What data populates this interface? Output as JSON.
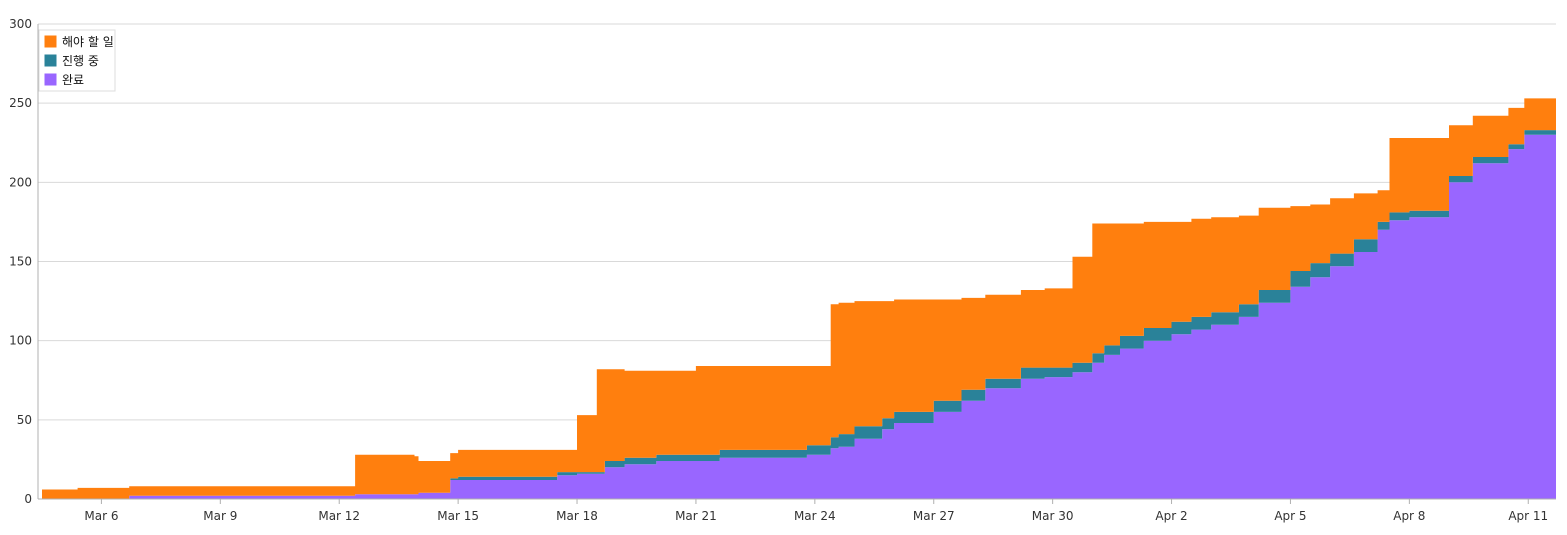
{
  "chart_data": {
    "type": "area",
    "stacked": true,
    "title": "",
    "xlabel": "",
    "ylabel": "",
    "ylim": [
      0,
      300
    ],
    "yticks": [
      0,
      50,
      100,
      150,
      200,
      250,
      300
    ],
    "xlim": [
      -1.6,
      36.7
    ],
    "xticks": [
      {
        "pos": 0,
        "label": "Mar 6"
      },
      {
        "pos": 3,
        "label": "Mar 9"
      },
      {
        "pos": 6,
        "label": "Mar 12"
      },
      {
        "pos": 9,
        "label": "Mar 15"
      },
      {
        "pos": 12,
        "label": "Mar 18"
      },
      {
        "pos": 15,
        "label": "Mar 21"
      },
      {
        "pos": 18,
        "label": "Mar 24"
      },
      {
        "pos": 21,
        "label": "Mar 27"
      },
      {
        "pos": 24,
        "label": "Mar 30"
      },
      {
        "pos": 27,
        "label": "Apr 2"
      },
      {
        "pos": 30,
        "label": "Apr 5"
      },
      {
        "pos": 33,
        "label": "Apr 8"
      },
      {
        "pos": 36,
        "label": "Apr 11"
      }
    ],
    "grid": "horizontal",
    "legend": "top-left",
    "x": [
      -1.5,
      -0.6,
      0.7,
      6.3,
      6.4,
      7.9,
      8.0,
      8.8,
      9.0,
      11.5,
      12.0,
      12.5,
      12.7,
      13.2,
      14.0,
      15.0,
      15.6,
      17.8,
      18.4,
      18.6,
      19.0,
      19.7,
      20.0,
      21.0,
      21.7,
      22.3,
      23.2,
      23.8,
      24.5,
      25.0,
      25.3,
      25.7,
      26.3,
      27.0,
      27.5,
      28.0,
      28.7,
      29.2,
      30.0,
      30.5,
      31.0,
      31.6,
      32.2,
      32.5,
      33.0,
      34.0,
      34.6,
      35.5,
      35.9,
      36.7
    ],
    "series": [
      {
        "name": "완료",
        "color": "#9966ff",
        "values": [
          0,
          0,
          2,
          2,
          3,
          3,
          4,
          12,
          12,
          15,
          16,
          16,
          20,
          22,
          24,
          24,
          26,
          28,
          32,
          33,
          38,
          44,
          48,
          55,
          62,
          70,
          76,
          77,
          80,
          86,
          91,
          95,
          100,
          104,
          107,
          110,
          115,
          124,
          134,
          140,
          147,
          156,
          170,
          176,
          178,
          200,
          212,
          221,
          230,
          240
        ]
      },
      {
        "name": "진행 중",
        "color": "#2a8299",
        "values": [
          0,
          0,
          0,
          0,
          0,
          0,
          0,
          1,
          2,
          2,
          1,
          1,
          4,
          4,
          4,
          4,
          5,
          6,
          7,
          8,
          8,
          7,
          7,
          7,
          7,
          6,
          7,
          6,
          6,
          6,
          6,
          8,
          8,
          8,
          8,
          8,
          8,
          8,
          10,
          9,
          8,
          8,
          5,
          5,
          4,
          4,
          4,
          3,
          3,
          3
        ]
      },
      {
        "name": "해야 할 일",
        "color": "#ff7f0e",
        "values": [
          6,
          7,
          6,
          6,
          25,
          24,
          20,
          16,
          17,
          14,
          36,
          65,
          58,
          55,
          53,
          56,
          53,
          50,
          84,
          83,
          79,
          74,
          71,
          64,
          58,
          53,
          49,
          50,
          67,
          82,
          77,
          71,
          67,
          63,
          62,
          60,
          56,
          52,
          41,
          37,
          35,
          29,
          20,
          47,
          46,
          32,
          26,
          23,
          20,
          11
        ]
      }
    ]
  }
}
